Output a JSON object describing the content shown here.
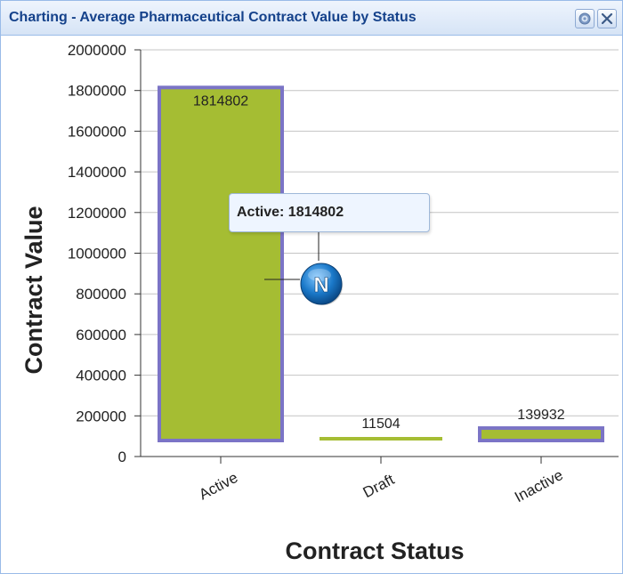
{
  "window": {
    "title": "Charting - Average Pharmaceutical Contract Value by Status",
    "tools": [
      "gear-icon",
      "close-icon"
    ]
  },
  "tooltip": {
    "label": "Active: 1814802",
    "marker_letter": "N",
    "marker_color": "#1a78c8"
  },
  "chart_data": {
    "type": "bar",
    "categories": [
      "Active",
      "Draft",
      "Inactive"
    ],
    "values": [
      1814802,
      11504,
      139932
    ],
    "data_labels": [
      "1814802",
      "11504",
      "139932"
    ],
    "xlabel": "Contract Status",
    "ylabel": "Contract Value",
    "ylim": [
      0,
      2000000
    ],
    "yticks": [
      "0",
      "200000",
      "400000",
      "600000",
      "800000",
      "1000000",
      "1200000",
      "1400000",
      "1600000",
      "1800000",
      "2000000"
    ],
    "grid": true,
    "bar_color": "#a5bd33",
    "highlight_color": "#7b74c6"
  }
}
